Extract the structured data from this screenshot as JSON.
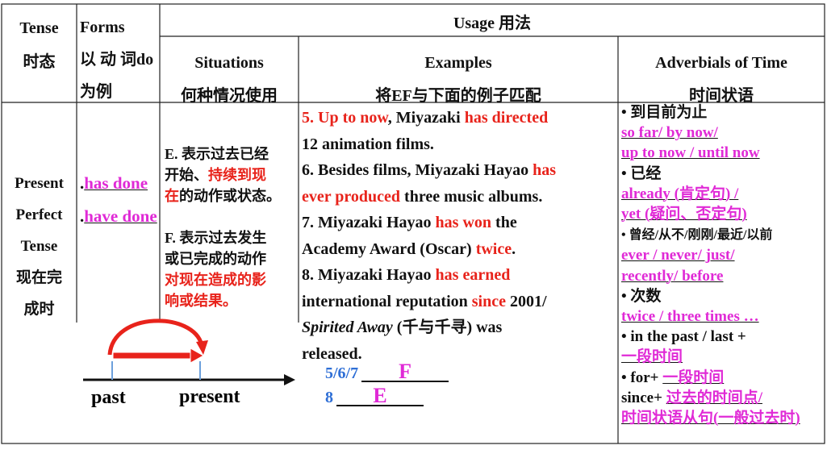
{
  "header": {
    "tense": [
      [
        [
          {
            "text": "Tense",
            "style": "plain"
          }
        ]
      ],
      [
        [
          {
            "text": "时态",
            "style": "plain"
          }
        ]
      ]
    ],
    "forms": [
      [
        [
          {
            "text": "Forms",
            "style": "plain"
          }
        ],
        [
          {
            "text": "以 动 词do",
            "style": "plain"
          }
        ],
        [
          {
            "text": "为例",
            "style": "plain"
          }
        ]
      ]
    ],
    "usage": [
      [
        [
          {
            "text": "Usage 用法",
            "style": "plain"
          }
        ]
      ]
    ],
    "situations": [
      [
        [
          {
            "text": "Situations",
            "style": "plain"
          }
        ],
        [
          {
            "text": "何种情况使用",
            "style": "plain"
          }
        ]
      ]
    ],
    "examples": [
      [
        [
          {
            "text": "Examples",
            "style": "plain"
          }
        ],
        [
          {
            "text": "将EF与下面的例子匹配",
            "style": "plain"
          }
        ]
      ]
    ],
    "adverbials": [
      [
        [
          {
            "text": "Adverbials of Time",
            "style": "plain"
          }
        ],
        [
          {
            "text": "时间状语",
            "style": "plain"
          }
        ]
      ]
    ]
  },
  "body": {
    "tense": [
      [
        [
          {
            "text": "Present",
            "style": "plain"
          }
        ],
        [
          {
            "text": "Perfect",
            "style": "plain"
          }
        ],
        [
          {
            "text": "Tense",
            "style": "plain"
          }
        ],
        [
          {
            "text": "现在完",
            "style": "plain"
          }
        ],
        [
          {
            "text": "成时",
            "style": "plain"
          }
        ]
      ]
    ],
    "forms": [
      [
        [
          {
            "text": ".",
            "style": "plain"
          },
          {
            "text": "has done",
            "style": "magenta-underline"
          }
        ],
        [
          {
            "text": ".",
            "style": "plain"
          },
          {
            "text": "have done",
            "style": "magenta-underline"
          }
        ]
      ]
    ],
    "situations": [
      [
        [
          {
            "text": "E. 表示过去已经",
            "style": "plain"
          }
        ],
        [
          {
            "text": "开始、",
            "style": "plain"
          },
          {
            "text": "持续到现",
            "style": "red"
          }
        ],
        [
          {
            "text": "在",
            "style": "red"
          },
          {
            "text": "的动作或状态。",
            "style": "plain"
          }
        ]
      ],
      [
        [
          {
            "text": "F. 表示过去发生",
            "style": "plain"
          }
        ],
        [
          {
            "text": "或已完成的动作",
            "style": "plain"
          }
        ],
        [
          {
            "text": "对现在造成的影",
            "style": "red"
          }
        ],
        [
          {
            "text": "响或结果。",
            "style": "red"
          }
        ]
      ]
    ],
    "examples": [
      [
        [
          {
            "text": "5. ",
            "style": "red"
          },
          {
            "text": "Up to now",
            "style": "red"
          },
          {
            "text": ", Miyazaki ",
            "style": "plain"
          },
          {
            "text": "has directed",
            "style": "red"
          }
        ],
        [
          {
            "text": "12 animation films.",
            "style": "plain"
          }
        ]
      ],
      [
        [
          {
            "text": "6. Besides films, Miyazaki Hayao ",
            "style": "plain"
          },
          {
            "text": "has",
            "style": "red"
          }
        ],
        [
          {
            "text": "ever produced",
            "style": "red"
          },
          {
            "text": " three music albums.",
            "style": "plain"
          }
        ]
      ],
      [
        [
          {
            "text": "7. Miyazaki Hayao ",
            "style": "plain"
          },
          {
            "text": "has won",
            "style": "red"
          },
          {
            "text": " the",
            "style": "plain"
          }
        ],
        [
          {
            "text": "Academy Award (Oscar) ",
            "style": "plain"
          },
          {
            "text": "twice",
            "style": "red"
          },
          {
            "text": ".",
            "style": "plain"
          }
        ]
      ],
      [
        [
          {
            "text": "8. Miyazaki Hayao ",
            "style": "plain"
          },
          {
            "text": "has earned",
            "style": "red"
          }
        ],
        [
          {
            "text": "international reputation ",
            "style": "plain"
          },
          {
            "text": "since",
            "style": "red"
          },
          {
            "text": " 2001/",
            "style": "plain"
          }
        ],
        [
          {
            "text": "Spirited Away",
            "style": "italic"
          },
          {
            "text": " (千与千寻) was",
            "style": "plain"
          }
        ],
        [
          {
            "text": "released.",
            "style": "plain"
          }
        ]
      ]
    ],
    "answers": [
      [
        [
          {
            "text": "5/6/7",
            "style": "blue"
          },
          {
            "text": "F",
            "style": "magenta-answer"
          }
        ],
        [
          {
            "text": "8",
            "style": "blue"
          },
          {
            "text": "E",
            "style": "magenta-answer"
          }
        ]
      ]
    ],
    "adverbials": [
      [
        [
          {
            "text": "•  到目前为止",
            "style": "plain"
          }
        ],
        [
          {
            "text": "so far/ by now/",
            "style": "magenta-underline"
          }
        ],
        [
          {
            "text": "up to now / until now",
            "style": "magenta-underline"
          }
        ],
        [
          {
            "text": "•  已经",
            "style": "plain"
          }
        ],
        [
          {
            "text": "already (肯定句) /",
            "style": "magenta-underline"
          }
        ],
        [
          {
            "text": "yet (疑问、否定句)",
            "style": "magenta-underline"
          }
        ],
        [
          {
            "text": "•  曾经/从不/刚刚/最近/以前",
            "style": "small"
          }
        ],
        [
          {
            "text": "ever / never/ just/",
            "style": "magenta-underline"
          }
        ],
        [
          {
            "text": "recently/ before",
            "style": "magenta-underline"
          }
        ],
        [
          {
            "text": "•  次数",
            "style": "plain"
          }
        ],
        [
          {
            "text": "twice / three times …",
            "style": "magenta-underline"
          }
        ],
        [
          {
            "text": "•  in the past / last +",
            "style": "plain"
          }
        ],
        [
          {
            "text": "一段时间",
            "style": "magenta-underline"
          }
        ],
        [
          {
            "text": "•  for+  ",
            "style": "plain"
          },
          {
            "text": "一段时间",
            "style": "magenta-underline"
          }
        ],
        [
          {
            "text": "since+  ",
            "style": "plain"
          },
          {
            "text": "过去的时间点/",
            "style": "magenta-underline"
          }
        ],
        [
          {
            "text": "时间状语从句(一般过去时)",
            "style": "magenta-underline"
          }
        ]
      ]
    ]
  },
  "diagram": {
    "past": "past",
    "present": "present"
  }
}
